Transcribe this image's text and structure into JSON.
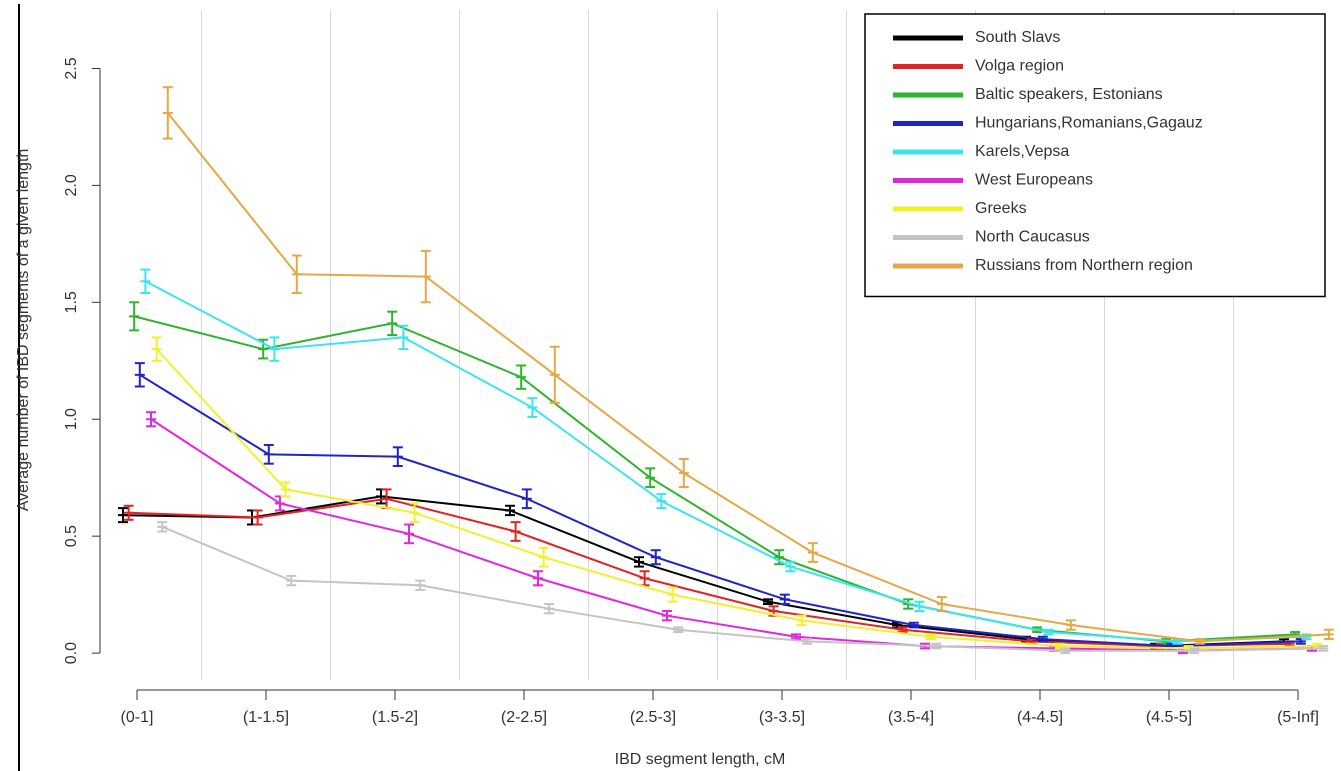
{
  "chart_data": {
    "type": "line",
    "x_label": "IBD segment length, cM",
    "y_label": "Average number of IBD segments of a given length",
    "categories": [
      "(0-1]",
      "(1-1.5]",
      "(1.5-2]",
      "(2-2.5]",
      "(2.5-3]",
      "(3-3.5]",
      "(3.5-4]",
      "(4-4.5]",
      "(4.5-5]",
      "(5-Inf]"
    ],
    "ylim": [
      -0.115,
      2.75
    ],
    "yticks": [
      {
        "value": 0,
        "label": "0.0"
      },
      0.5,
      {
        "value": 1,
        "label": "1.0"
      },
      1.5,
      {
        "value": 2,
        "label": "2.0"
      },
      2.5
    ],
    "grid": true,
    "legend": "top-right",
    "series": [
      {
        "name": "South Slavs",
        "color": "#000000",
        "values": [
          0.59,
          0.58,
          0.67,
          0.61,
          0.39,
          0.22,
          0.12,
          0.06,
          0.03,
          0.05
        ],
        "errors": [
          0.03,
          0.03,
          0.03,
          0.02,
          0.02,
          0.01,
          0.01,
          0.01,
          0.01,
          0.01
        ]
      },
      {
        "name": "Volga region",
        "color": "#e02424",
        "values": [
          0.6,
          0.58,
          0.66,
          0.52,
          0.32,
          0.18,
          0.1,
          0.05,
          0.03,
          0.04
        ],
        "errors": [
          0.03,
          0.03,
          0.04,
          0.04,
          0.03,
          0.02,
          0.01,
          0.01,
          0.01,
          0.01
        ]
      },
      {
        "name": "Baltic speakers, Estonians",
        "color": "#2cb52c",
        "values": [
          1.44,
          1.3,
          1.41,
          1.18,
          0.75,
          0.41,
          0.21,
          0.1,
          0.05,
          0.08
        ],
        "errors": [
          0.06,
          0.04,
          0.05,
          0.05,
          0.04,
          0.03,
          0.02,
          0.01,
          0.01,
          0.01
        ]
      },
      {
        "name": "Hungarians,Romanians,Gagauz",
        "color": "#1f24c8",
        "values": [
          1.19,
          0.85,
          0.84,
          0.66,
          0.41,
          0.23,
          0.12,
          0.06,
          0.03,
          0.05
        ],
        "errors": [
          0.05,
          0.04,
          0.04,
          0.04,
          0.03,
          0.02,
          0.01,
          0.01,
          0.01,
          0.01
        ]
      },
      {
        "name": "Karels,Vepsa",
        "color": "#3ce4f0",
        "values": [
          1.59,
          1.3,
          1.35,
          1.05,
          0.65,
          0.37,
          0.2,
          0.09,
          0.05,
          0.07
        ],
        "errors": [
          0.05,
          0.05,
          0.05,
          0.04,
          0.03,
          0.02,
          0.02,
          0.01,
          0.01,
          0.01
        ]
      },
      {
        "name": "West Europeans",
        "color": "#e028e0",
        "values": [
          1.0,
          0.64,
          0.51,
          0.32,
          0.16,
          0.07,
          0.03,
          0.02,
          0.01,
          0.02
        ],
        "errors": [
          0.03,
          0.03,
          0.04,
          0.03,
          0.02,
          0.01,
          0.01,
          0.01,
          0.01,
          0.01
        ]
      },
      {
        "name": "Greeks",
        "color": "#f2f02a",
        "values": [
          1.3,
          0.7,
          0.6,
          0.41,
          0.25,
          0.14,
          0.07,
          0.03,
          0.02,
          0.03
        ],
        "errors": [
          0.05,
          0.03,
          0.04,
          0.04,
          0.03,
          0.02,
          0.01,
          0.01,
          0.01,
          0.01
        ]
      },
      {
        "name": "North Caucasus",
        "color": "#c4c4c4",
        "values": [
          0.54,
          0.31,
          0.29,
          0.19,
          0.1,
          0.05,
          0.03,
          0.01,
          0.01,
          0.02
        ],
        "errors": [
          0.02,
          0.02,
          0.02,
          0.02,
          0.01,
          0.01,
          0.01,
          0.01,
          0.01,
          0.01
        ]
      },
      {
        "name": "Russians from Northern region",
        "color": "#e4a848",
        "values": [
          2.31,
          1.62,
          1.61,
          1.19,
          0.77,
          0.43,
          0.21,
          0.12,
          0.05,
          0.08
        ],
        "errors": [
          0.11,
          0.08,
          0.11,
          0.12,
          0.06,
          0.04,
          0.03,
          0.02,
          0.01,
          0.02
        ]
      }
    ]
  }
}
